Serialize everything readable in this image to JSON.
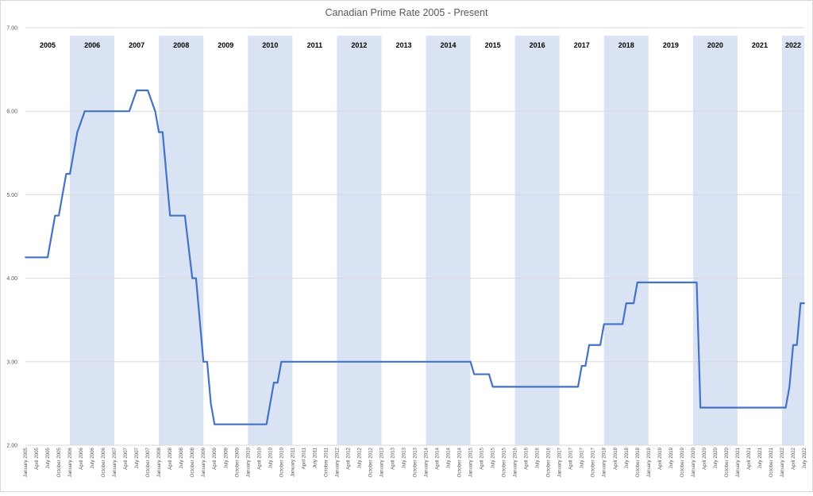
{
  "chart_data": {
    "type": "line",
    "title": "Canadian Prime Rate 2005 - Present",
    "xlabel": "",
    "ylabel": "",
    "ylim": [
      2.0,
      7.0
    ],
    "y_ticks": [
      "2.00",
      "3.00",
      "4.00",
      "5.00",
      "6.00",
      "7.00"
    ],
    "grid": true,
    "legend": "none",
    "colors": {
      "line": "#4472c4",
      "band": "#dae3f3",
      "grid": "#d9d9d9",
      "text": "#595959"
    },
    "x_start": "January 2005",
    "x_end": "July 2022",
    "x_tick_labels": [
      "January 2005",
      "April 2005",
      "July 2005",
      "October 2005",
      "January 2006",
      "April 2006",
      "July 2006",
      "October 2006",
      "January 2007",
      "April 2007",
      "July 2007",
      "October 2007",
      "January 2008",
      "April 2008",
      "July 2008",
      "October 2008",
      "January 2009",
      "April 2009",
      "July 2009",
      "October 2009",
      "January 2010",
      "April 2010",
      "July 2010",
      "October 2010",
      "January 2011",
      "April 2011",
      "July 2011",
      "October 2011",
      "January 2012",
      "April 2012",
      "July 2012",
      "October 2012",
      "January 2013",
      "April 2013",
      "July 2013",
      "October 2013",
      "January 2014",
      "April 2014",
      "July 2014",
      "October 2014",
      "January 2015",
      "April 2015",
      "July 2015",
      "October 2015",
      "January 2016",
      "April 2016",
      "July 2016",
      "October 2016",
      "January 2017",
      "April 2017",
      "July 2017",
      "October 2017",
      "January 2018",
      "April 2018",
      "July 2018",
      "October 2018",
      "January 2019",
      "April 2019",
      "July 2019",
      "October 2019",
      "January 2020",
      "April 2020",
      "July 2020",
      "October 2020",
      "January 2021",
      "April 2021",
      "July 2021",
      "October 2021",
      "January 2022",
      "April 2022",
      "July 2022"
    ],
    "year_bands": [
      {
        "label": "2005",
        "start": "January 2005",
        "end": "January 2006",
        "shaded": false
      },
      {
        "label": "2006",
        "start": "January 2006",
        "end": "January 2007",
        "shaded": true
      },
      {
        "label": "2007",
        "start": "January 2007",
        "end": "January 2008",
        "shaded": false
      },
      {
        "label": "2008",
        "start": "January 2008",
        "end": "January 2009",
        "shaded": true
      },
      {
        "label": "2009",
        "start": "January 2009",
        "end": "January 2010",
        "shaded": false
      },
      {
        "label": "2010",
        "start": "January 2010",
        "end": "January 2011",
        "shaded": true
      },
      {
        "label": "2011",
        "start": "January 2011",
        "end": "January 2012",
        "shaded": false
      },
      {
        "label": "2012",
        "start": "January 2012",
        "end": "January 2013",
        "shaded": true
      },
      {
        "label": "2013",
        "start": "January 2013",
        "end": "January 2014",
        "shaded": false
      },
      {
        "label": "2014",
        "start": "January 2014",
        "end": "January 2015",
        "shaded": true
      },
      {
        "label": "2015",
        "start": "January 2015",
        "end": "January 2016",
        "shaded": false
      },
      {
        "label": "2016",
        "start": "January 2016",
        "end": "January 2017",
        "shaded": true
      },
      {
        "label": "2017",
        "start": "January 2017",
        "end": "January 2018",
        "shaded": false
      },
      {
        "label": "2018",
        "start": "January 2018",
        "end": "January 2019",
        "shaded": true
      },
      {
        "label": "2019",
        "start": "January 2019",
        "end": "January 2020",
        "shaded": false
      },
      {
        "label": "2020",
        "start": "January 2020",
        "end": "January 2021",
        "shaded": true
      },
      {
        "label": "2021",
        "start": "January 2021",
        "end": "January 2022",
        "shaded": false
      },
      {
        "label": "2022",
        "start": "January 2022",
        "end": "July 2022",
        "shaded": true
      }
    ],
    "series": [
      {
        "name": "",
        "points": [
          [
            "January 2005",
            4.25
          ],
          [
            "July 2005",
            4.25
          ],
          [
            "September 2005",
            4.75
          ],
          [
            "October 2005",
            4.75
          ],
          [
            "December 2005",
            5.25
          ],
          [
            "January 2006",
            5.25
          ],
          [
            "March 2006",
            5.75
          ],
          [
            "May 2006",
            6.0
          ],
          [
            "May 2007",
            6.0
          ],
          [
            "July 2007",
            6.25
          ],
          [
            "October 2007",
            6.25
          ],
          [
            "December 2007",
            6.0
          ],
          [
            "January 2008",
            5.75
          ],
          [
            "February 2008",
            5.75
          ],
          [
            "April 2008",
            4.75
          ],
          [
            "August 2008",
            4.75
          ],
          [
            "October 2008",
            4.0
          ],
          [
            "November 2008",
            4.0
          ],
          [
            "December 2008",
            3.5
          ],
          [
            "January 2009",
            3.0
          ],
          [
            "February 2009",
            3.0
          ],
          [
            "March 2009",
            2.5
          ],
          [
            "April 2009",
            2.25
          ],
          [
            "June 2010",
            2.25
          ],
          [
            "July 2010",
            2.5
          ],
          [
            "August 2010",
            2.75
          ],
          [
            "September 2010",
            2.75
          ],
          [
            "October 2010",
            3.0
          ],
          [
            "December 2014",
            3.0
          ],
          [
            "January 2015",
            3.0
          ],
          [
            "February 2015",
            2.85
          ],
          [
            "June 2015",
            2.85
          ],
          [
            "July 2015",
            2.7
          ],
          [
            "June 2017",
            2.7
          ],
          [
            "July 2017",
            2.95
          ],
          [
            "August 2017",
            2.95
          ],
          [
            "September 2017",
            3.2
          ],
          [
            "December 2017",
            3.2
          ],
          [
            "January 2018",
            3.45
          ],
          [
            "June 2018",
            3.45
          ],
          [
            "July 2018",
            3.7
          ],
          [
            "September 2018",
            3.7
          ],
          [
            "October 2018",
            3.95
          ],
          [
            "February 2020",
            3.95
          ],
          [
            "March 2020",
            2.45
          ],
          [
            "February 2022",
            2.45
          ],
          [
            "March 2022",
            2.7
          ],
          [
            "April 2022",
            3.2
          ],
          [
            "May 2022",
            3.2
          ],
          [
            "June 2022",
            3.7
          ],
          [
            "July 2022",
            3.7
          ]
        ]
      }
    ]
  }
}
